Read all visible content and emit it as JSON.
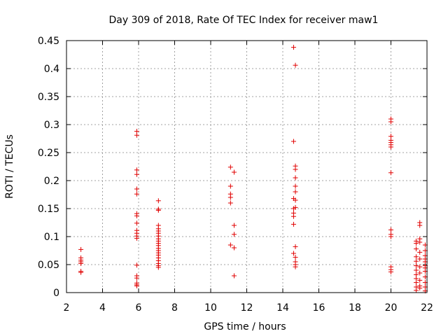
{
  "chart_data": {
    "type": "scatter",
    "title": "Day 309 of 2018, Rate Of TEC Index for receiver maw1",
    "xlabel": "GPS time / hours",
    "ylabel": "ROTI / TECUs",
    "xlim": [
      2,
      22
    ],
    "ylim": [
      0,
      0.45
    ],
    "xticks": [
      "2",
      "4",
      "6",
      "8",
      "10",
      "12",
      "14",
      "16",
      "18",
      "20",
      "22"
    ],
    "yticks": [
      "0",
      "0.05",
      "0.1",
      "0.15",
      "0.2",
      "0.25",
      "0.3",
      "0.35",
      "0.4",
      "0.45"
    ],
    "grid": true,
    "marker": "+",
    "color": "#e00000",
    "series": [
      {
        "name": "ROTI",
        "points": [
          [
            2.8,
            0.077
          ],
          [
            2.8,
            0.062
          ],
          [
            2.8,
            0.058
          ],
          [
            2.8,
            0.055
          ],
          [
            2.8,
            0.052
          ],
          [
            2.8,
            0.038
          ],
          [
            2.8,
            0.036
          ],
          [
            5.9,
            0.288
          ],
          [
            5.9,
            0.281
          ],
          [
            5.9,
            0.219
          ],
          [
            5.9,
            0.211
          ],
          [
            5.9,
            0.185
          ],
          [
            5.9,
            0.176
          ],
          [
            5.9,
            0.141
          ],
          [
            5.9,
            0.137
          ],
          [
            5.9,
            0.124
          ],
          [
            5.9,
            0.111
          ],
          [
            5.9,
            0.106
          ],
          [
            5.9,
            0.101
          ],
          [
            5.9,
            0.097
          ],
          [
            5.9,
            0.049
          ],
          [
            5.9,
            0.03
          ],
          [
            5.9,
            0.026
          ],
          [
            5.9,
            0.017
          ],
          [
            5.9,
            0.014
          ],
          [
            5.9,
            0.012
          ],
          [
            7.1,
            0.164
          ],
          [
            7.1,
            0.149
          ],
          [
            7.1,
            0.147
          ],
          [
            7.1,
            0.12
          ],
          [
            7.1,
            0.114
          ],
          [
            7.1,
            0.11
          ],
          [
            7.1,
            0.106
          ],
          [
            7.1,
            0.101
          ],
          [
            7.1,
            0.096
          ],
          [
            7.1,
            0.092
          ],
          [
            7.1,
            0.088
          ],
          [
            7.1,
            0.084
          ],
          [
            7.1,
            0.079
          ],
          [
            7.1,
            0.075
          ],
          [
            7.1,
            0.071
          ],
          [
            7.1,
            0.067
          ],
          [
            7.1,
            0.062
          ],
          [
            7.1,
            0.057
          ],
          [
            7.1,
            0.052
          ],
          [
            7.1,
            0.048
          ],
          [
            7.1,
            0.045
          ],
          [
            11.1,
            0.224
          ],
          [
            11.1,
            0.19
          ],
          [
            11.1,
            0.176
          ],
          [
            11.1,
            0.17
          ],
          [
            11.1,
            0.16
          ],
          [
            11.1,
            0.085
          ],
          [
            11.3,
            0.215
          ],
          [
            11.3,
            0.12
          ],
          [
            11.3,
            0.104
          ],
          [
            11.3,
            0.08
          ],
          [
            11.3,
            0.03
          ],
          [
            14.6,
            0.438
          ],
          [
            14.6,
            0.27
          ],
          [
            14.6,
            0.168
          ],
          [
            14.6,
            0.15
          ],
          [
            14.6,
            0.142
          ],
          [
            14.6,
            0.136
          ],
          [
            14.6,
            0.122
          ],
          [
            14.6,
            0.07
          ],
          [
            14.7,
            0.406
          ],
          [
            14.7,
            0.226
          ],
          [
            14.7,
            0.22
          ],
          [
            14.7,
            0.205
          ],
          [
            14.7,
            0.19
          ],
          [
            14.7,
            0.18
          ],
          [
            14.7,
            0.165
          ],
          [
            14.7,
            0.152
          ],
          [
            14.7,
            0.082
          ],
          [
            14.7,
            0.063
          ],
          [
            14.7,
            0.055
          ],
          [
            14.7,
            0.05
          ],
          [
            14.7,
            0.046
          ],
          [
            20.0,
            0.31
          ],
          [
            20.0,
            0.305
          ],
          [
            20.0,
            0.279
          ],
          [
            20.0,
            0.272
          ],
          [
            20.0,
            0.268
          ],
          [
            20.0,
            0.264
          ],
          [
            20.0,
            0.26
          ],
          [
            20.0,
            0.214
          ],
          [
            20.0,
            0.112
          ],
          [
            20.0,
            0.104
          ],
          [
            20.0,
            0.1
          ],
          [
            20.0,
            0.046
          ],
          [
            20.0,
            0.041
          ],
          [
            20.0,
            0.037
          ],
          [
            21.4,
            0.092
          ],
          [
            21.4,
            0.088
          ],
          [
            21.4,
            0.078
          ],
          [
            21.4,
            0.064
          ],
          [
            21.4,
            0.056
          ],
          [
            21.4,
            0.048
          ],
          [
            21.4,
            0.04
          ],
          [
            21.4,
            0.032
          ],
          [
            21.4,
            0.025
          ],
          [
            21.4,
            0.018
          ],
          [
            21.4,
            0.01
          ],
          [
            21.4,
            0.004
          ],
          [
            21.6,
            0.125
          ],
          [
            21.6,
            0.12
          ],
          [
            21.6,
            0.096
          ],
          [
            21.6,
            0.09
          ],
          [
            21.6,
            0.072
          ],
          [
            21.6,
            0.06
          ],
          [
            21.6,
            0.046
          ],
          [
            21.6,
            0.035
          ],
          [
            21.6,
            0.022
          ],
          [
            21.6,
            0.012
          ],
          [
            21.6,
            0.008
          ],
          [
            21.9,
            0.085
          ],
          [
            21.9,
            0.075
          ],
          [
            21.9,
            0.066
          ],
          [
            21.9,
            0.06
          ],
          [
            21.9,
            0.055
          ],
          [
            21.9,
            0.048
          ],
          [
            21.9,
            0.044
          ],
          [
            21.9,
            0.038
          ],
          [
            21.9,
            0.028
          ],
          [
            21.9,
            0.018
          ],
          [
            21.9,
            0.01
          ],
          [
            21.9,
            0.003
          ]
        ]
      }
    ]
  }
}
